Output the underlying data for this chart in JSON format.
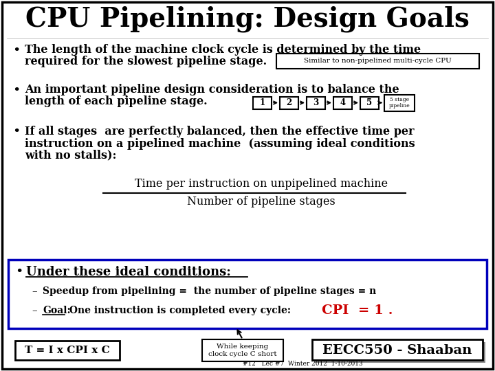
{
  "title": "CPU Pipelining: Design Goals",
  "bg_color": "#ffffff",
  "border_color": "#000000",
  "title_fontsize": 28,
  "bullet1_line1": "The length of the machine clock cycle is determined by the time",
  "bullet1_line2": "required for the slowest pipeline stage.",
  "bullet1_box": "Similar to non-pipelined multi-cycle CPU",
  "bullet2_line1": "An important pipeline design consideration is to balance the",
  "bullet2_line2": "length of each pipeline stage.",
  "bullet3_line1": "If all stages  are perfectly balanced, then the effective time per",
  "bullet3_line2": "instruction on a pipelined machine  (assuming ideal conditions",
  "bullet3_line3": "with no stalls):",
  "fraction_num": "Time per instruction on unpipelined machine",
  "fraction_den": "Number of pipeline stages",
  "ideal_header": "Under these ideal conditions:",
  "speedup_text": "Speedup from pipelining =  the number of pipeline stages = n",
  "goal_label": "Goal:",
  "goal_text": " One instruction is completed every cycle:",
  "cpi_text": "CPI  = 1 .",
  "box_formula": "T = I x CPI x C",
  "box_while": "While keeping\nclock cycle C short",
  "box_eecc": "EECC550 - Shaaban",
  "footer": "#12   Lec #7  Winter 2012  1-10-2013",
  "blue_border": "#0000bb",
  "red_color": "#cc0000",
  "pipeline_stages": [
    "1",
    "2",
    "3",
    "4",
    "5"
  ],
  "stage_label": "5 stage\npipeline"
}
